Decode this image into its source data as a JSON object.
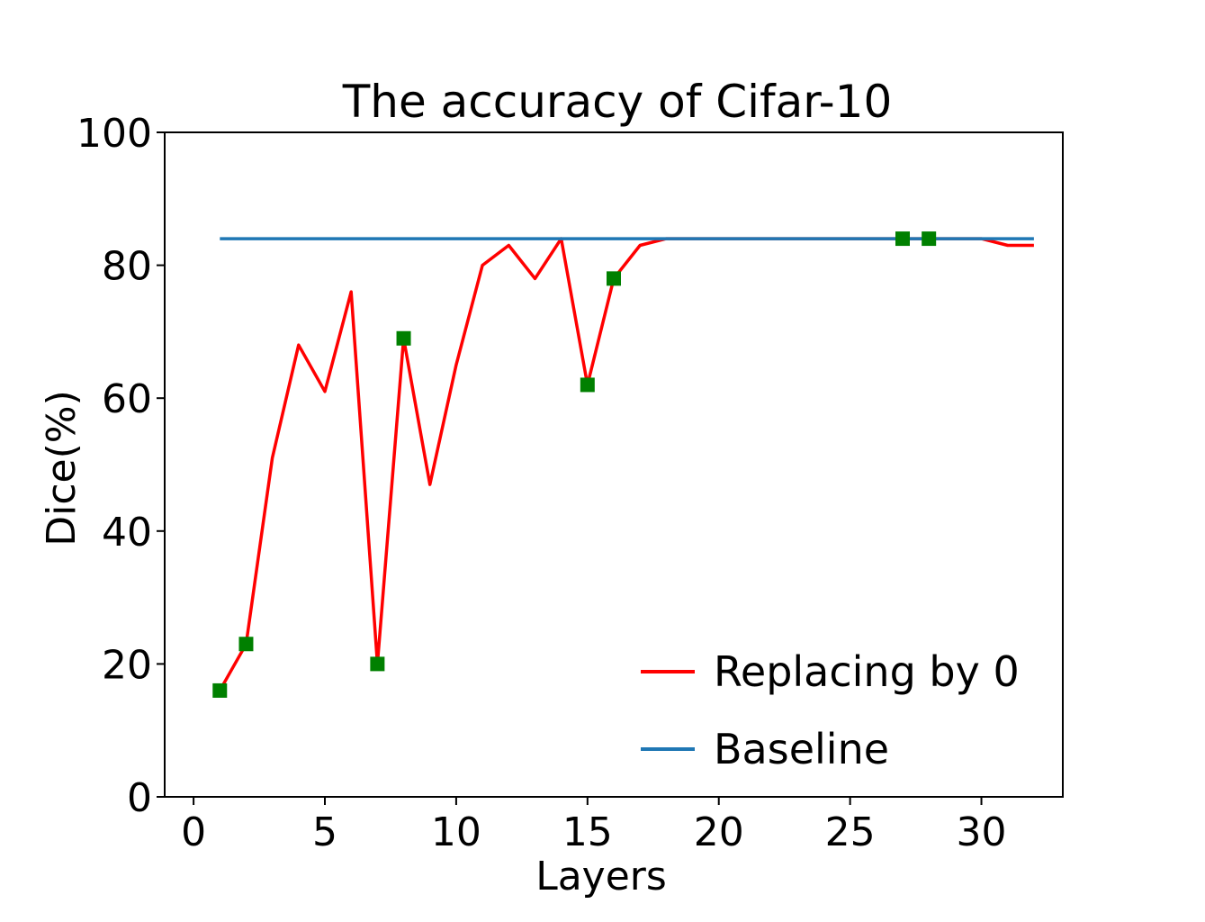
{
  "chart_data": {
    "type": "line",
    "title": "The accuracy of Cifar-10",
    "xlabel": "Layers",
    "ylabel": "Dice(%)",
    "xlim": [
      -1.1,
      33.1
    ],
    "ylim": [
      0,
      100
    ],
    "xticks": [
      0,
      5,
      10,
      15,
      20,
      25,
      30
    ],
    "yticks": [
      0,
      20,
      40,
      60,
      80,
      100
    ],
    "grid": false,
    "legend_position": "lower-right",
    "series": [
      {
        "name": "Replacing by 0",
        "color": "#ff0000",
        "x": [
          1,
          2,
          3,
          4,
          5,
          6,
          7,
          8,
          9,
          10,
          11,
          12,
          13,
          14,
          15,
          16,
          17,
          18,
          19,
          20,
          21,
          22,
          23,
          24,
          25,
          26,
          27,
          28,
          29,
          30,
          31,
          32
        ],
        "y": [
          16,
          23,
          51,
          68,
          61,
          76,
          20,
          69,
          47,
          65,
          80,
          83,
          78,
          84,
          62,
          78,
          83,
          84,
          84,
          84,
          84,
          84,
          84,
          84,
          84,
          84,
          84,
          84,
          84,
          84,
          83,
          83
        ]
      },
      {
        "name": "Baseline",
        "color": "#1f77b4",
        "x": [
          1,
          32
        ],
        "y": [
          84,
          84
        ]
      }
    ],
    "markers": {
      "color": "#008000",
      "shape": "square",
      "x": [
        1,
        2,
        7,
        8,
        15,
        16,
        27,
        28
      ],
      "y": [
        16,
        23,
        20,
        69,
        62,
        78,
        84,
        84
      ]
    }
  }
}
